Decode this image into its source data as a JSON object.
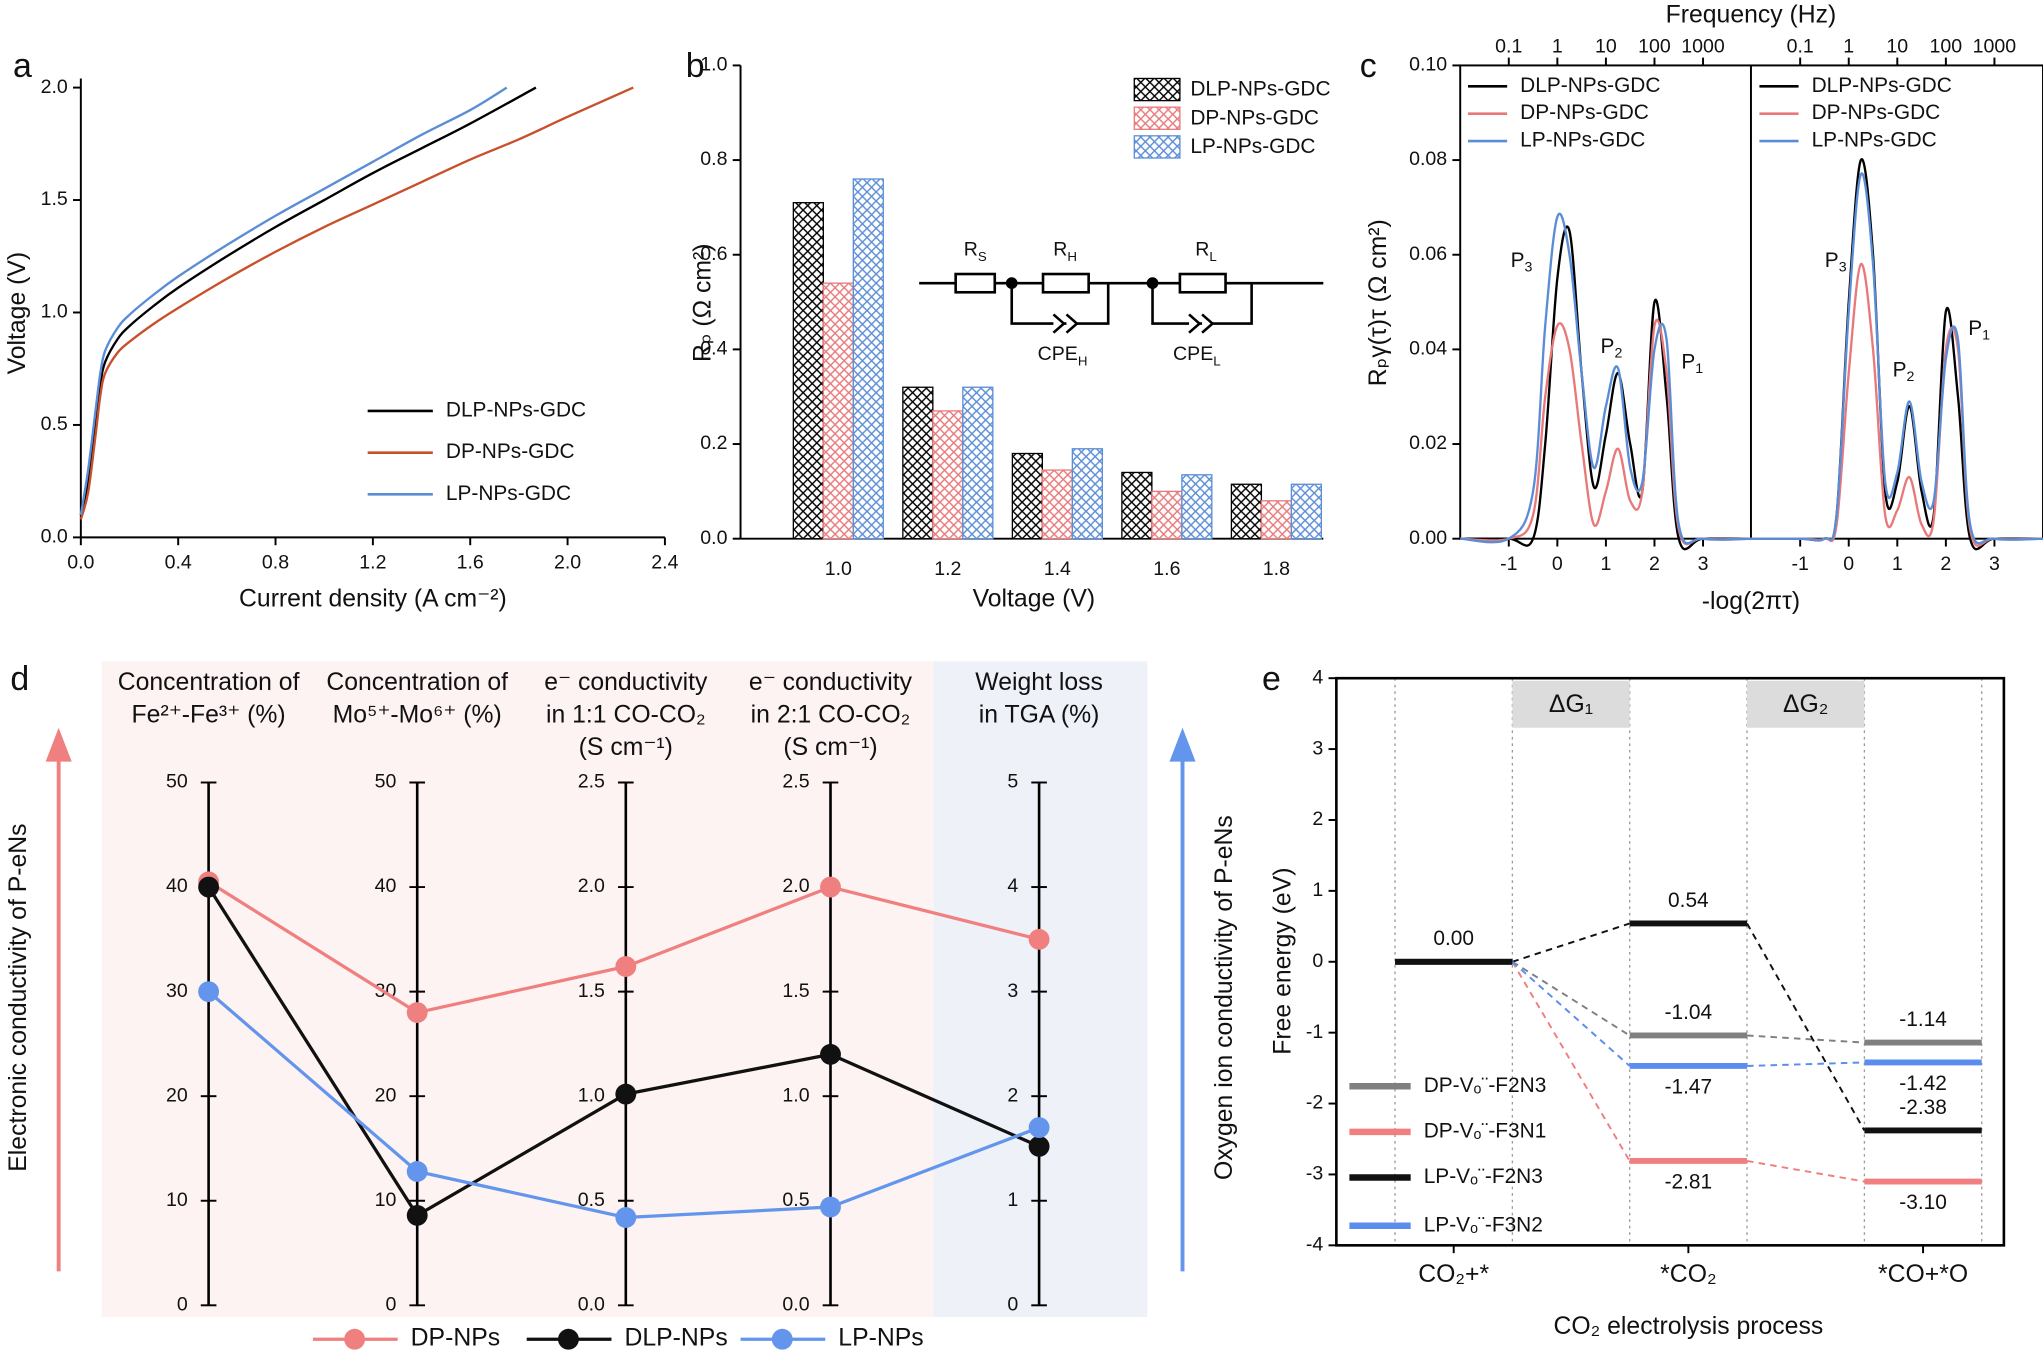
{
  "chart_data": [
    {
      "type": "line",
      "label": "a",
      "xlabel": "Current density (A cm⁻²)",
      "ylabel": "Voltage (V)",
      "xlim": [
        0,
        2.4
      ],
      "ylim": [
        0,
        2.0
      ],
      "xticks": [
        {
          "value": 0,
          "label": "0.0"
        },
        0.4,
        0.8,
        1.2,
        1.6,
        {
          "value": 2,
          "label": "2.0"
        },
        2.4
      ],
      "yticks": [
        {
          "value": 0,
          "label": "0.0"
        },
        0.5,
        {
          "value": 1,
          "label": "1.0"
        },
        1.5,
        {
          "value": 2,
          "label": "2.0"
        }
      ],
      "series": [
        {
          "name": "DLP-NPs-GDC",
          "color": "#000000",
          "x": [
            0,
            0.03,
            0.06,
            0.08,
            0.1,
            0.15,
            0.2,
            0.3,
            0.4,
            0.6,
            0.8,
            1.0,
            1.2,
            1.4,
            1.6,
            1.87
          ],
          "values": [
            0.1,
            0.25,
            0.5,
            0.68,
            0.78,
            0.88,
            0.94,
            1.03,
            1.11,
            1.25,
            1.38,
            1.5,
            1.62,
            1.73,
            1.84,
            2.0
          ]
        },
        {
          "name": "DP-NPs-GDC",
          "color": "#c8502a",
          "x": [
            0,
            0.03,
            0.06,
            0.08,
            0.1,
            0.15,
            0.2,
            0.3,
            0.4,
            0.6,
            0.8,
            1.0,
            1.2,
            1.4,
            1.6,
            1.8,
            2.0,
            2.27
          ],
          "values": [
            0.08,
            0.2,
            0.45,
            0.63,
            0.73,
            0.82,
            0.87,
            0.95,
            1.02,
            1.15,
            1.27,
            1.38,
            1.48,
            1.58,
            1.68,
            1.77,
            1.87,
            2.0
          ]
        },
        {
          "name": "LP-NPs-GDC",
          "color": "#5b8dd6",
          "x": [
            0,
            0.03,
            0.06,
            0.08,
            0.1,
            0.15,
            0.2,
            0.3,
            0.4,
            0.6,
            0.8,
            1.0,
            1.2,
            1.4,
            1.6,
            1.75
          ],
          "values": [
            0.1,
            0.3,
            0.56,
            0.73,
            0.83,
            0.93,
            0.99,
            1.08,
            1.16,
            1.3,
            1.43,
            1.55,
            1.67,
            1.79,
            1.9,
            2.0
          ]
        }
      ]
    },
    {
      "type": "bar",
      "label": "b",
      "xlabel": "Voltage (V)",
      "ylabel": "Rₚ (Ω cm²)",
      "categories": [
        "1.0",
        "1.2",
        "1.4",
        "1.6",
        "1.8"
      ],
      "ylim": [
        0,
        1
      ],
      "yticks": [
        {
          "value": 0,
          "label": "0.0"
        },
        0.2,
        0.4,
        0.6,
        0.8,
        {
          "value": 1,
          "label": "1.0"
        }
      ],
      "inset_labels": [
        [
          "R",
          "S"
        ],
        [
          "R",
          "H"
        ],
        [
          "R",
          "L"
        ],
        [
          "CPE",
          "H"
        ],
        [
          "CPE",
          "L"
        ]
      ],
      "series": [
        {
          "name": "DLP-NPs-GDC",
          "color": "#000000",
          "values": [
            0.71,
            0.32,
            0.18,
            0.14,
            0.115
          ]
        },
        {
          "name": "DP-NPs-GDC",
          "color": "#e8797a",
          "values": [
            0.54,
            0.27,
            0.145,
            0.1,
            0.08
          ]
        },
        {
          "name": "LP-NPs-GDC",
          "color": "#5b8dd6",
          "values": [
            0.76,
            0.32,
            0.19,
            0.135,
            0.115
          ]
        }
      ]
    },
    {
      "type": "line",
      "label": "c",
      "title": "Frequency (Hz)",
      "xlabel": "-log(2πτ)",
      "ylabel": "Rₚγ(τ)τ (Ω cm²)",
      "xlim": [
        -2,
        4
      ],
      "ylim": [
        0,
        0.1
      ],
      "xticks": [
        -1,
        0,
        1,
        2,
        3
      ],
      "x2ticks": [
        {
          "value": -1,
          "label": "0.1"
        },
        {
          "value": 0,
          "label": "1"
        },
        {
          "value": 1,
          "label": "10"
        },
        {
          "value": 2,
          "label": "100"
        },
        {
          "value": 3,
          "label": "1000"
        }
      ],
      "yticks": [
        {
          "value": 0,
          "label": "0.00"
        },
        0.02,
        0.04,
        0.06,
        0.08,
        {
          "value": 0.1,
          "label": "0.10"
        }
      ],
      "x": [
        -2,
        -1,
        -0.5,
        -0.25,
        0,
        0.25,
        0.5,
        0.75,
        1,
        1.25,
        1.5,
        1.75,
        2,
        2.25,
        2.5,
        3,
        4
      ],
      "panels": [
        {
          "annotations": [
            [
              "P",
              "3"
            ],
            [
              "P",
              "2"
            ],
            [
              "P",
              "1"
            ]
          ],
          "series": [
            {
              "name": "DLP-NPs-GDC",
              "color": "#000000",
              "values": [
                0,
                0,
                0,
                0.02,
                0.055,
                0.065,
                0.035,
                0.011,
                0.022,
                0.035,
                0.02,
                0.01,
                0.05,
                0.03,
                0,
                0,
                0
              ]
            },
            {
              "name": "DP-NPs-GDC",
              "color": "#e8797a",
              "values": [
                0,
                0,
                0.005,
                0.03,
                0.045,
                0.04,
                0.02,
                0.003,
                0.01,
                0.019,
                0.008,
                0.01,
                0.045,
                0.035,
                0.002,
                0,
                0
              ]
            },
            {
              "name": "LP-NPs-GDC",
              "color": "#5b8dd6",
              "values": [
                0,
                0,
                0.01,
                0.045,
                0.068,
                0.06,
                0.035,
                0.015,
                0.028,
                0.036,
                0.015,
                0.012,
                0.04,
                0.042,
                0.003,
                0,
                0
              ]
            }
          ]
        },
        {
          "annotations": [
            [
              "P",
              "3"
            ],
            [
              "P",
              "2"
            ],
            [
              "P",
              "1"
            ]
          ],
          "series": [
            {
              "name": "DLP-NPs-GDC",
              "color": "#000000",
              "values": [
                0,
                0,
                0,
                0.005,
                0.05,
                0.08,
                0.06,
                0.01,
                0.012,
                0.028,
                0.01,
                0.005,
                0.048,
                0.03,
                0,
                0,
                0
              ]
            },
            {
              "name": "DP-NPs-GDC",
              "color": "#e8797a",
              "values": [
                0,
                0,
                0,
                0.003,
                0.035,
                0.058,
                0.04,
                0.005,
                0.006,
                0.013,
                0.003,
                0.004,
                0.04,
                0.04,
                0.002,
                0,
                0
              ]
            },
            {
              "name": "LP-NPs-GDC",
              "color": "#5b8dd6",
              "values": [
                0,
                0,
                0,
                0.005,
                0.048,
                0.077,
                0.058,
                0.012,
                0.014,
                0.029,
                0.012,
                0.008,
                0.038,
                0.042,
                0.003,
                0,
                0
              ]
            }
          ]
        }
      ]
    },
    {
      "type": "parallel",
      "label": "d",
      "left_label": "Electronic conductivity of P-eNs",
      "right_label": "Oxygen ion conductivity of P-eNs",
      "axes": [
        {
          "label": [
            "Concentration of",
            "Fe²⁺-Fe³⁺ (%)"
          ],
          "ylim": [
            0,
            50
          ],
          "yticks": [
            0,
            10,
            20,
            30,
            40,
            50
          ]
        },
        {
          "label": [
            "Concentration of",
            "Mo⁵⁺-Mo⁶⁺ (%)"
          ],
          "ylim": [
            0,
            50
          ],
          "yticks": [
            0,
            10,
            20,
            30,
            40,
            50
          ]
        },
        {
          "label": [
            "e⁻ conductivity",
            "in 1:1 CO-CO₂",
            "(S cm⁻¹)"
          ],
          "ylim": [
            0,
            2.5
          ],
          "yticks": [
            {
              "value": 0,
              "label": "0.0"
            },
            0.5,
            {
              "value": 1,
              "label": "1.0"
            },
            1.5,
            {
              "value": 2,
              "label": "2.0"
            },
            2.5
          ]
        },
        {
          "label": [
            "e⁻ conductivity",
            "in 2:1 CO-CO₂",
            "(S cm⁻¹)"
          ],
          "ylim": [
            0,
            2.5
          ],
          "yticks": [
            {
              "value": 0,
              "label": "0.0"
            },
            0.5,
            {
              "value": 1,
              "label": "1.0"
            },
            1.5,
            {
              "value": 2,
              "label": "2.0"
            },
            2.5
          ]
        },
        {
          "label": [
            "Weight loss",
            "in TGA (%)"
          ],
          "ylim": [
            0,
            5
          ],
          "yticks": [
            0,
            1,
            2,
            3,
            4,
            5
          ]
        }
      ],
      "series": [
        {
          "name": "DP-NPs",
          "color": "#f08080",
          "values": [
            40.5,
            28,
            1.62,
            2.0,
            3.5
          ]
        },
        {
          "name": "DLP-NPs",
          "color": "#111111",
          "values": [
            40,
            8.6,
            1.01,
            1.2,
            1.52
          ]
        },
        {
          "name": "LP-NPs",
          "color": "#6495ed",
          "values": [
            30,
            12.8,
            0.42,
            0.47,
            1.7
          ]
        }
      ]
    },
    {
      "type": "energy",
      "label": "e",
      "xlabel": "CO₂ electrolysis process",
      "ylabel": "Free energy (eV)",
      "categories": [
        "CO₂+*",
        "*CO₂",
        "*CO+*O"
      ],
      "steps": [
        "ΔG₁",
        "ΔG₂"
      ],
      "ylim": [
        -4,
        4
      ],
      "yticks": [
        -4,
        -3,
        -2,
        -1,
        0,
        1,
        2,
        3,
        4
      ],
      "series": [
        {
          "name": "DP-Vₒ¨-F2N3",
          "color": "#808080",
          "values": [
            0,
            -1.04,
            -1.14
          ],
          "value_labels": [
            null,
            "-1.04",
            "-1.14"
          ]
        },
        {
          "name": "DP-Vₒ¨-F3N1",
          "color": "#f08080",
          "values": [
            0,
            -2.81,
            -3.1
          ],
          "value_labels": [
            null,
            "-2.81",
            "-3.10"
          ]
        },
        {
          "name": "LP-Vₒ¨-F2N3",
          "color": "#111111",
          "values": [
            0,
            0.54,
            -2.38
          ],
          "value_labels": [
            "0.00",
            "0.54",
            "-2.38"
          ]
        },
        {
          "name": "LP-Vₒ¨-F3N2",
          "color": "#5b8def",
          "values": [
            0,
            -1.47,
            -1.42
          ],
          "value_labels": [
            null,
            "-1.47",
            "-1.42"
          ]
        }
      ]
    }
  ]
}
